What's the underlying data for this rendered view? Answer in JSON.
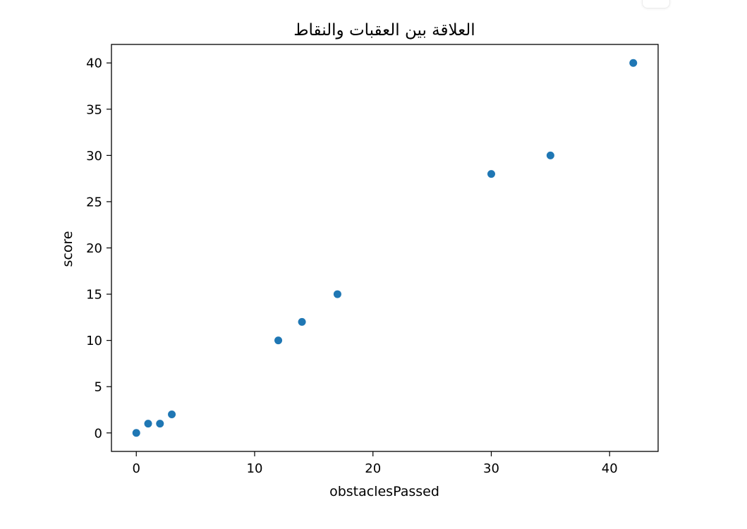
{
  "chart_data": {
    "type": "scatter",
    "title": "العلاقة بين العقبات والنقاط",
    "xlabel": "obstaclesPassed",
    "ylabel": "score",
    "x": [
      0,
      1,
      2,
      3,
      12,
      14,
      17,
      30,
      35,
      42
    ],
    "y": [
      0,
      1,
      1,
      2,
      10,
      12,
      15,
      28,
      30,
      40
    ],
    "xlim": [
      -2.1,
      44.1
    ],
    "ylim": [
      -2,
      42
    ],
    "xticks": [
      0,
      10,
      20,
      30,
      40
    ],
    "yticks": [
      0,
      5,
      10,
      15,
      20,
      25,
      30,
      35,
      40
    ],
    "grid": false,
    "point_color": "#1f77b4"
  }
}
